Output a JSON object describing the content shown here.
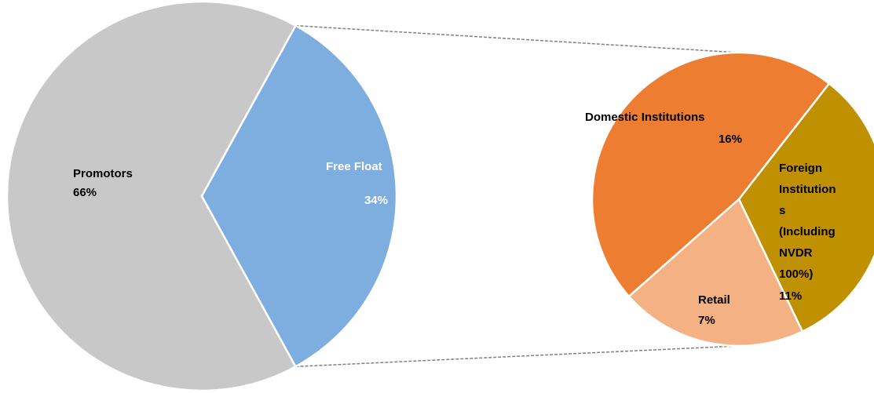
{
  "chart_data": [
    {
      "type": "pie",
      "categories": [
        "Promotors",
        "Free Float"
      ],
      "values": [
        66,
        34
      ],
      "value_labels": [
        "66%",
        "34%"
      ],
      "colors": [
        "#c8c8c8",
        "#7daedf"
      ]
    },
    {
      "type": "pie",
      "categories": [
        "Domestic Institutions",
        "Foreign Institutions (Including NVDR 100%)",
        "Retail"
      ],
      "values": [
        16,
        11,
        7
      ],
      "value_labels": [
        "16%",
        "11%",
        "7%"
      ],
      "colors": [
        "#ed7d31",
        "#bf9000",
        "#f4b183"
      ]
    }
  ]
}
